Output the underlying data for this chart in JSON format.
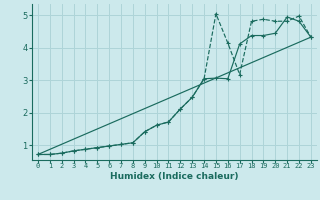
{
  "title": "",
  "xlabel": "Humidex (Indice chaleur)",
  "bg_color": "#cce9ec",
  "grid_color": "#aed4d8",
  "line_color": "#1a6b5e",
  "xlim": [
    -0.5,
    23.5
  ],
  "ylim": [
    0.55,
    5.35
  ],
  "xticks": [
    0,
    1,
    2,
    3,
    4,
    5,
    6,
    7,
    8,
    9,
    10,
    11,
    12,
    13,
    14,
    15,
    16,
    17,
    18,
    19,
    20,
    21,
    22,
    23
  ],
  "yticks": [
    1,
    2,
    3,
    4,
    5
  ],
  "line1_x": [
    0,
    1,
    2,
    3,
    4,
    5,
    6,
    7,
    8,
    9,
    10,
    11,
    12,
    13,
    14,
    15,
    16,
    17,
    18,
    19,
    20,
    21,
    22,
    23
  ],
  "line1_y": [
    0.72,
    0.72,
    0.76,
    0.83,
    0.88,
    0.93,
    0.98,
    1.03,
    1.08,
    1.42,
    1.62,
    1.72,
    2.12,
    2.48,
    3.05,
    3.07,
    3.05,
    4.12,
    4.38,
    4.38,
    4.45,
    4.95,
    4.82,
    4.33
  ],
  "line2_x": [
    0,
    1,
    2,
    3,
    4,
    5,
    6,
    7,
    8,
    9,
    10,
    11,
    12,
    13,
    14,
    15,
    16,
    17,
    18,
    19,
    20,
    21,
    22,
    23
  ],
  "line2_y": [
    0.72,
    0.72,
    0.76,
    0.83,
    0.88,
    0.93,
    0.98,
    1.03,
    1.08,
    1.42,
    1.62,
    1.72,
    2.12,
    2.48,
    3.05,
    5.05,
    4.15,
    3.18,
    4.82,
    4.88,
    4.82,
    4.82,
    4.98,
    4.33
  ],
  "line3_x": [
    0,
    23
  ],
  "line3_y": [
    0.72,
    4.33
  ]
}
